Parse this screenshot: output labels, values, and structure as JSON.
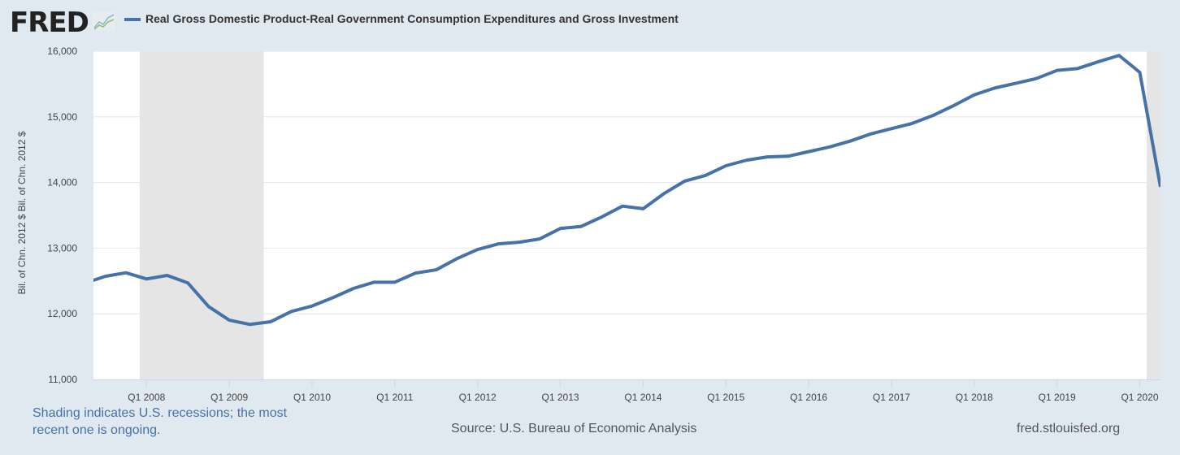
{
  "header": {
    "logo": "FRED",
    "legend_label": "Real Gross Domestic Product-Real Government Consumption Expenditures and Gross Investment"
  },
  "footer": {
    "note": "Shading indicates U.S. recessions; the most recent one is ongoing.",
    "source": "Source: U.S. Bureau of Economic Analysis",
    "site": "fred.stlouisfed.org"
  },
  "chart_data": {
    "type": "line",
    "title": "",
    "xlabel": "",
    "ylabel": "Bil. of Chn. 2012 $ Bil. of Chn. 2012 $",
    "ylim": [
      11000,
      16000
    ],
    "yticks": [
      "11,000",
      "12,000",
      "13,000",
      "14,000",
      "15,000",
      "16,000"
    ],
    "yticks_values": [
      11000,
      12000,
      13000,
      14000,
      15000,
      16000
    ],
    "xticks": [
      "Q1 2008",
      "Q1 2009",
      "Q1 2010",
      "Q1 2011",
      "Q1 2012",
      "Q1 2013",
      "Q1 2014",
      "Q1 2015",
      "Q1 2016",
      "Q1 2017",
      "Q1 2018",
      "Q1 2019",
      "Q1 2020"
    ],
    "grid": true,
    "line_color": "#4572a7",
    "recession_color": "#e5e5e5",
    "recessions": [
      [
        "2007-12",
        "2009-06"
      ],
      [
        "2020-02",
        "2020-04"
      ]
    ],
    "series": [
      {
        "name": "Real Gross Domestic Product-Real Government Consumption Expenditures and Gross Investment",
        "x": [
          "2007 Q2",
          "2007 Q3",
          "2007 Q4",
          "2008 Q1",
          "2008 Q2",
          "2008 Q3",
          "2008 Q4",
          "2009 Q1",
          "2009 Q2",
          "2009 Q3",
          "2009 Q4",
          "2010 Q1",
          "2010 Q2",
          "2010 Q3",
          "2010 Q4",
          "2011 Q1",
          "2011 Q2",
          "2011 Q3",
          "2011 Q4",
          "2012 Q1",
          "2012 Q2",
          "2012 Q3",
          "2012 Q4",
          "2013 Q1",
          "2013 Q2",
          "2013 Q3",
          "2013 Q4",
          "2014 Q1",
          "2014 Q2",
          "2014 Q3",
          "2014 Q4",
          "2015 Q1",
          "2015 Q2",
          "2015 Q3",
          "2015 Q4",
          "2016 Q1",
          "2016 Q2",
          "2016 Q3",
          "2016 Q4",
          "2017 Q1",
          "2017 Q2",
          "2017 Q3",
          "2017 Q4",
          "2018 Q1",
          "2018 Q2",
          "2018 Q3",
          "2018 Q4",
          "2019 Q1",
          "2019 Q2",
          "2019 Q3",
          "2019 Q4",
          "2020 Q1",
          "2020 Q2"
        ],
        "values": [
          12465,
          12570,
          12625,
          12531,
          12584,
          12469,
          12110,
          11903,
          11838,
          11879,
          12036,
          12118,
          12245,
          12386,
          12481,
          12481,
          12620,
          12670,
          12840,
          12980,
          13065,
          13090,
          13140,
          13300,
          13330,
          13475,
          13640,
          13600,
          13830,
          14020,
          14105,
          14255,
          14340,
          14390,
          14400,
          14470,
          14540,
          14630,
          14740,
          14820,
          14900,
          15020,
          15170,
          15335,
          15440,
          15510,
          15583,
          15707,
          15736,
          15840,
          15935,
          15678,
          13933
        ]
      }
    ]
  }
}
